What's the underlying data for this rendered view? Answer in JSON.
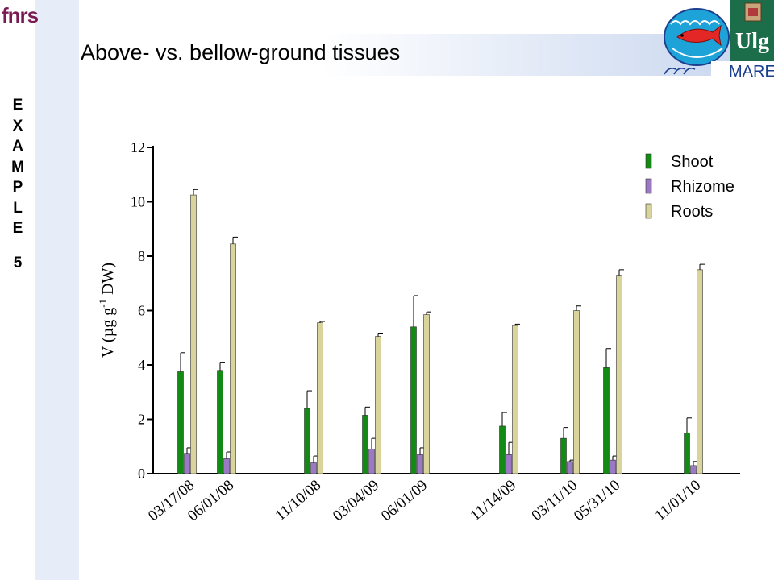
{
  "slide": {
    "title": "Above- vs. bellow-ground tissues",
    "side_label_letters": [
      "E",
      "X",
      "A",
      "M",
      "P",
      "L",
      "E"
    ],
    "side_label_number": "5",
    "logos": {
      "fnrs": "fnrs",
      "ulg": "Ulg",
      "mare": "MARE"
    }
  },
  "chart_data": {
    "type": "bar",
    "title": "",
    "xlabel": "",
    "ylabel": "V (µg g-1 DW)",
    "ylabel_parts": {
      "pre": "V (µg g",
      "sup": "-1",
      "post": " DW)"
    },
    "ylim": [
      0,
      12
    ],
    "yticks": [
      "0",
      "2",
      "4",
      "6",
      "8",
      "10",
      "12"
    ],
    "categories": [
      "03/17/08",
      "06/01/08",
      "11/10/08",
      "03/04/09",
      "06/01/09",
      "11/14/09",
      "03/11/10",
      "05/31/10",
      "11/01/10"
    ],
    "series": [
      {
        "name": "Shoot",
        "color": "#138a13",
        "values": [
          3.75,
          3.8,
          2.4,
          2.15,
          5.4,
          1.75,
          1.3,
          3.9,
          1.5
        ],
        "errors": [
          0.7,
          0.3,
          0.65,
          0.3,
          1.15,
          0.5,
          0.4,
          0.7,
          0.55
        ]
      },
      {
        "name": "Rhizome",
        "color": "#9b79c4",
        "values": [
          0.75,
          0.55,
          0.4,
          0.9,
          0.7,
          0.7,
          0.45,
          0.5,
          0.3
        ],
        "errors": [
          0.2,
          0.25,
          0.25,
          0.4,
          0.25,
          0.45,
          0.05,
          0.15,
          0.15
        ]
      },
      {
        "name": "Roots",
        "color": "#d8d49c",
        "values": [
          10.25,
          8.45,
          5.55,
          5.05,
          5.85,
          5.45,
          6.0,
          7.3,
          7.5
        ],
        "errors": [
          0.2,
          0.25,
          0.05,
          0.12,
          0.1,
          0.05,
          0.17,
          0.2,
          0.2
        ]
      }
    ],
    "legend_position": "top-right",
    "grid": false,
    "error_bars": "upper"
  }
}
